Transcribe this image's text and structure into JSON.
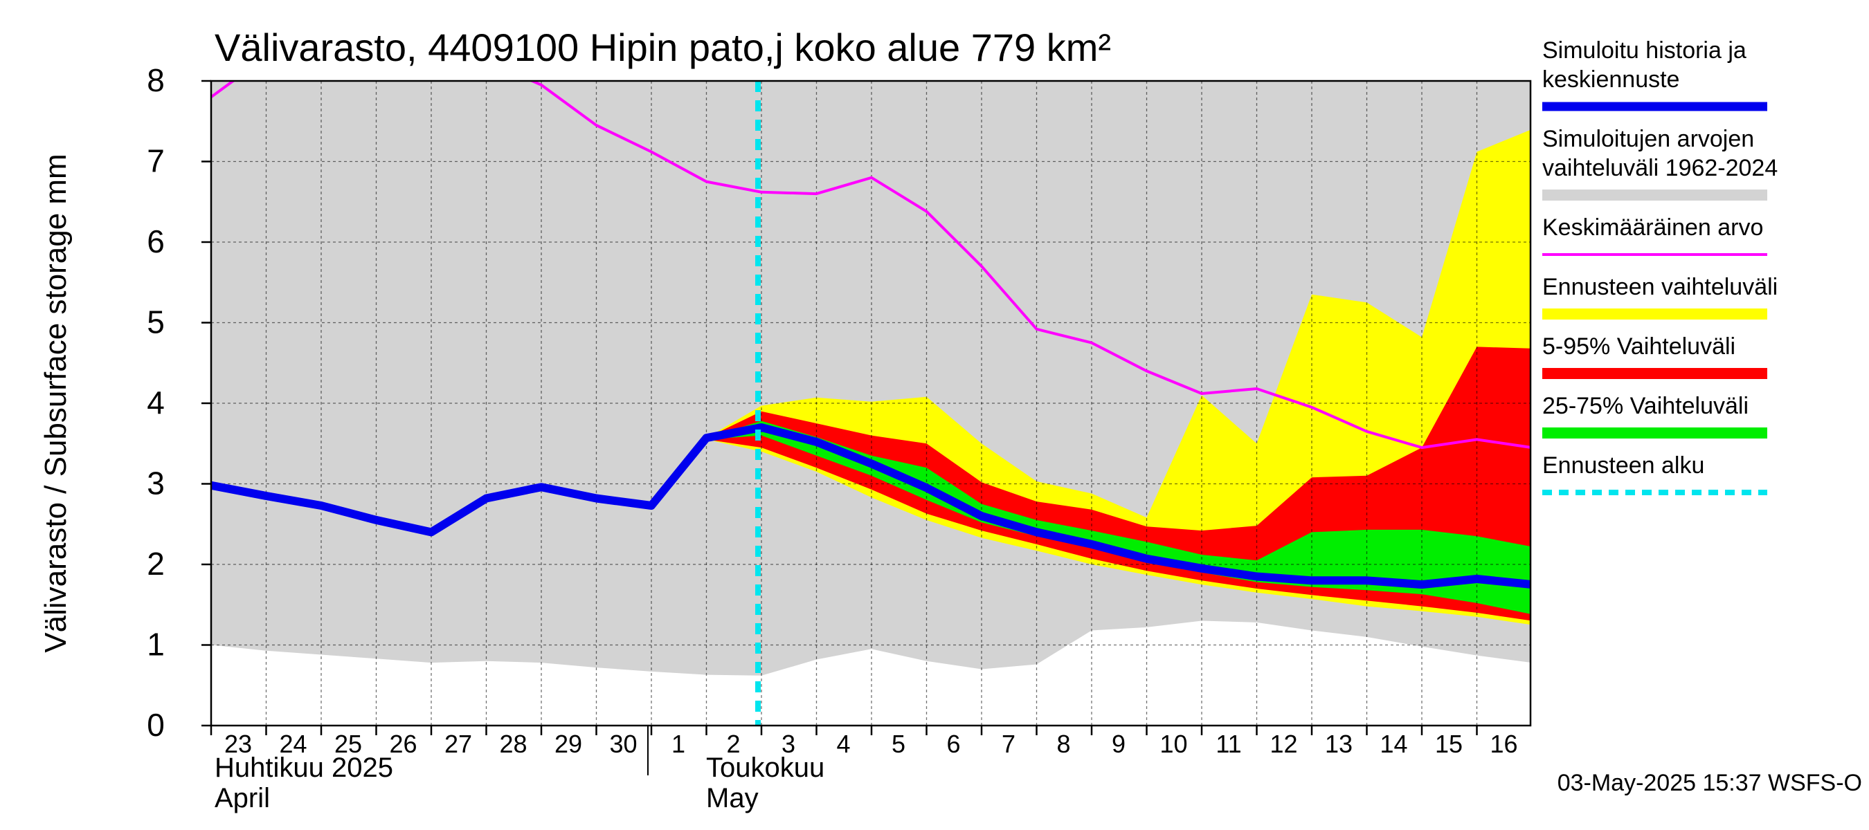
{
  "chart_data": {
    "type": "area",
    "title": "Välivarasto, 4409100 Hipin pato,j koko alue 779 km²",
    "ylabel": "Välivarasto / Subsurface storage  mm",
    "ylim": [
      0,
      8
    ],
    "yticks": [
      "0",
      "1",
      "2",
      "3",
      "4",
      "5",
      "6",
      "7",
      "8"
    ],
    "grid": true,
    "legend_position": "right",
    "x_dates": [
      "2025-04-23",
      "2025-04-24",
      "2025-04-25",
      "2025-04-26",
      "2025-04-27",
      "2025-04-28",
      "2025-04-29",
      "2025-04-30",
      "2025-05-01",
      "2025-05-02",
      "2025-05-03",
      "2025-05-04",
      "2025-05-05",
      "2025-05-06",
      "2025-05-07",
      "2025-05-08",
      "2025-05-09",
      "2025-05-10",
      "2025-05-11",
      "2025-05-12",
      "2025-05-13",
      "2025-05-14",
      "2025-05-15",
      "2025-05-16",
      "2025-05-17"
    ],
    "x_tick_labels": [
      "23",
      "24",
      "25",
      "26",
      "27",
      "28",
      "29",
      "30",
      "1",
      "2",
      "3",
      "4",
      "5",
      "6",
      "7",
      "8",
      "9",
      "10",
      "11",
      "12",
      "13",
      "14",
      "15",
      "16"
    ],
    "month_labels": [
      {
        "line1": "Huhtikuu  2025",
        "line2": "April"
      },
      {
        "line1": "Toukokuu",
        "line2": "May"
      }
    ],
    "forecast_start": "2025-05-03",
    "series": [
      {
        "name": "Simuloitujen arvojen vaihteluväli 1962-2024",
        "kind": "band",
        "color": "#d3d3d3",
        "upper": [
          8,
          8,
          8,
          8,
          8,
          8,
          8,
          8,
          8,
          8,
          8,
          8,
          8,
          8,
          8,
          8,
          8,
          8,
          8,
          8,
          8,
          8,
          8,
          8,
          8
        ],
        "lower": [
          1.0,
          0.93,
          0.88,
          0.83,
          0.78,
          0.8,
          0.78,
          0.72,
          0.67,
          0.63,
          0.62,
          0.82,
          0.95,
          0.8,
          0.7,
          0.76,
          1.18,
          1.22,
          1.3,
          1.28,
          1.18,
          1.1,
          0.98,
          0.87,
          0.78
        ]
      },
      {
        "name": "Ennusteen vaihteluväli",
        "kind": "band",
        "color": "#ffff00",
        "x_start": "2025-05-02",
        "upper": [
          3.57,
          3.97,
          4.07,
          4.02,
          4.08,
          3.5,
          3.03,
          2.88,
          2.58,
          4.1,
          3.5,
          5.35,
          5.25,
          4.82,
          7.12,
          7.4
        ],
        "lower": [
          3.55,
          3.4,
          3.15,
          2.83,
          2.55,
          2.33,
          2.17,
          2.0,
          1.87,
          1.75,
          1.65,
          1.57,
          1.48,
          1.42,
          1.35,
          1.25
        ]
      },
      {
        "name": "5-95% Vaihteluväli",
        "kind": "band",
        "color": "#ff0000",
        "x_start": "2025-05-02",
        "upper": [
          3.57,
          3.9,
          3.75,
          3.6,
          3.5,
          3.02,
          2.78,
          2.68,
          2.47,
          2.42,
          2.48,
          3.08,
          3.1,
          3.45,
          4.7,
          4.68
        ],
        "lower": [
          3.55,
          3.45,
          3.2,
          2.93,
          2.63,
          2.42,
          2.25,
          2.07,
          1.92,
          1.8,
          1.7,
          1.62,
          1.55,
          1.48,
          1.4,
          1.3
        ]
      },
      {
        "name": "25-75% Vaihteluväli",
        "kind": "band",
        "color": "#00ee00",
        "x_start": "2025-05-02",
        "upper": [
          3.57,
          3.78,
          3.58,
          3.35,
          3.2,
          2.75,
          2.55,
          2.42,
          2.28,
          2.12,
          2.05,
          2.4,
          2.43,
          2.43,
          2.35,
          2.22
        ],
        "lower": [
          3.55,
          3.6,
          3.35,
          3.1,
          2.8,
          2.52,
          2.35,
          2.2,
          2.02,
          1.9,
          1.78,
          1.72,
          1.68,
          1.63,
          1.52,
          1.38
        ]
      },
      {
        "name": "Keskimääräinen arvo",
        "kind": "line",
        "color": "#ff00ff",
        "values": [
          7.8,
          8.3,
          8.5,
          8.6,
          8.5,
          8.25,
          7.95,
          7.45,
          7.12,
          6.75,
          6.62,
          6.6,
          6.8,
          6.38,
          5.7,
          4.92,
          4.75,
          4.4,
          4.12,
          4.18,
          3.95,
          3.65,
          3.45,
          3.55,
          3.45
        ]
      },
      {
        "name": "Simuloitu historia ja keskiennuste",
        "kind": "line",
        "color": "#0000ee",
        "values": [
          2.98,
          2.85,
          2.73,
          2.55,
          2.4,
          2.82,
          2.96,
          2.82,
          2.73,
          3.57,
          3.7,
          3.52,
          3.25,
          2.95,
          2.6,
          2.4,
          2.25,
          2.07,
          1.95,
          1.85,
          1.8,
          1.8,
          1.75,
          1.82,
          1.75
        ]
      }
    ]
  },
  "legend": [
    {
      "label_lines": [
        "Simuloitu historia ja",
        "keskiennuste"
      ],
      "color": "#0000ee",
      "style": "thick-line"
    },
    {
      "label_lines": [
        "Simuloitujen arvojen",
        "vaihteluväli 1962-2024"
      ],
      "color": "#d3d3d3",
      "style": "band"
    },
    {
      "label_lines": [
        "Keskimääräinen arvo"
      ],
      "color": "#ff00ff",
      "style": "thin-line"
    },
    {
      "label_lines": [
        "Ennusteen vaihteluväli"
      ],
      "color": "#ffff00",
      "style": "band"
    },
    {
      "label_lines": [
        "5-95% Vaihteluväli"
      ],
      "color": "#ff0000",
      "style": "band"
    },
    {
      "label_lines": [
        "25-75% Vaihteluväli"
      ],
      "color": "#00ee00",
      "style": "band"
    },
    {
      "label_lines": [
        "Ennusteen alku"
      ],
      "color": "#00e5ee",
      "style": "dashed"
    }
  ],
  "footer": "03-May-2025 15:37 WSFS-O"
}
